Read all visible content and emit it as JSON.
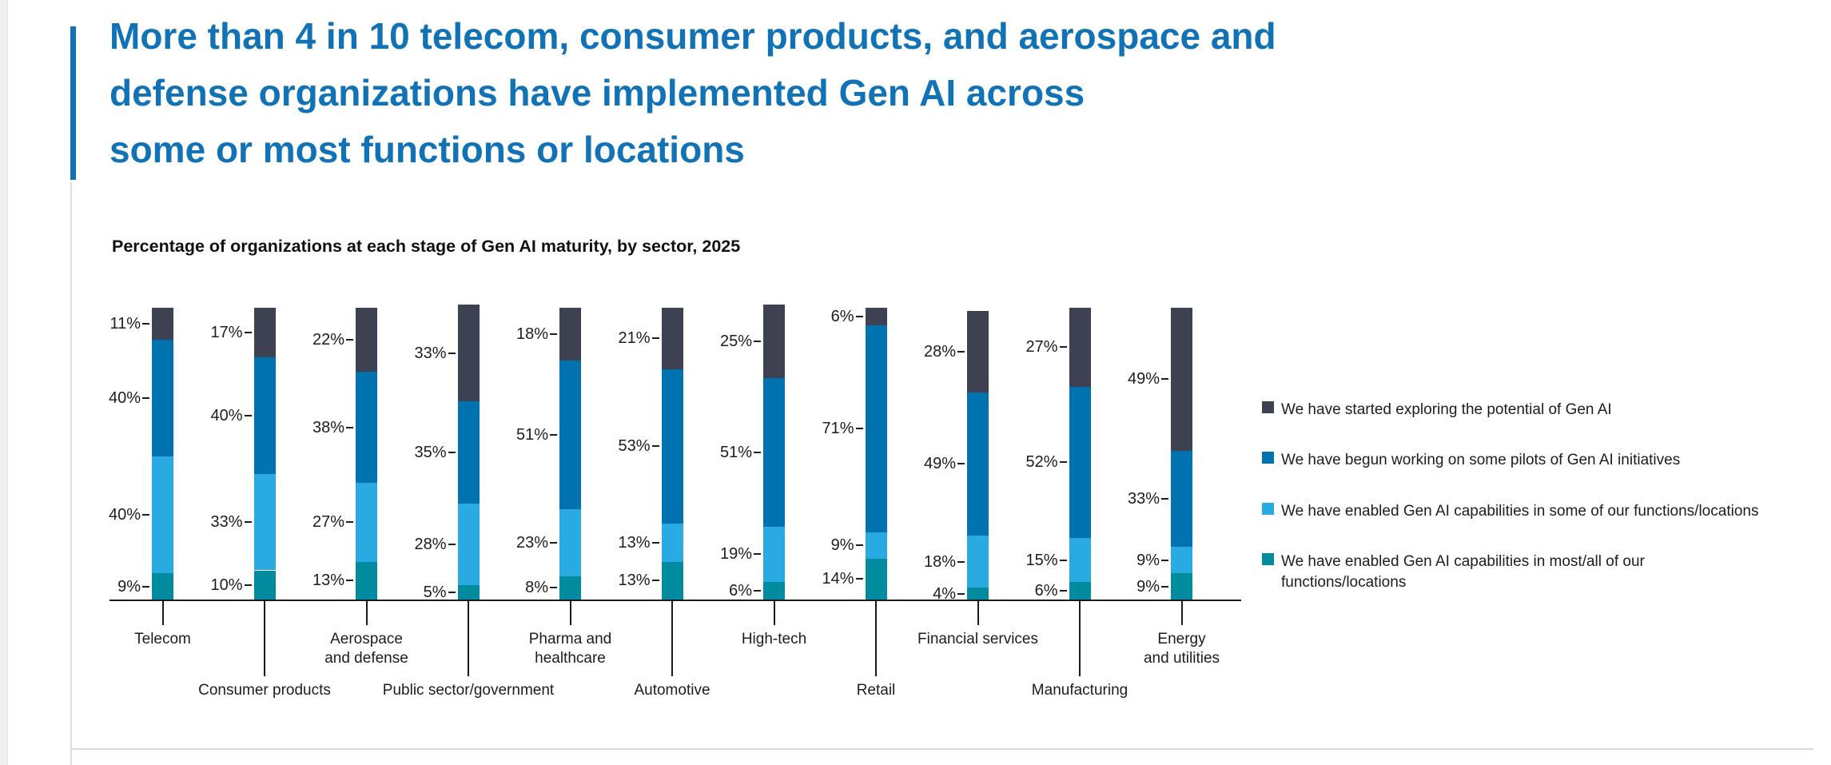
{
  "page": {
    "title_lines": [
      "More than 4 in 10 telecom, consumer products, and aerospace and",
      "defense organizations have implemented Gen AI across",
      "some or most functions or locations"
    ],
    "title_color": "#1173b5",
    "accent_color": "#1173b5"
  },
  "chart_data": {
    "type": "bar",
    "variant": "stacked-100-vertical",
    "title": "Percentage of organizations at each stage of Gen AI maturity, by sector, 2025",
    "value_suffix": "%",
    "legend_position": "right",
    "grid": false,
    "categories": [
      "Telecom",
      "Consumer products",
      "Aerospace and defense",
      "Public sector/government",
      "Pharma and healthcare",
      "Automotive",
      "High-tech",
      "Retail",
      "Financial services",
      "Manufacturing",
      "Energy and utilities"
    ],
    "category_label_lines": [
      [
        "Telecom"
      ],
      [
        "Consumer products"
      ],
      [
        "Aerospace",
        "and defense"
      ],
      [
        "Public sector/government"
      ],
      [
        "Pharma and",
        "healthcare"
      ],
      [
        "Automotive"
      ],
      [
        "High-tech"
      ],
      [
        "Retail"
      ],
      [
        "Financial services"
      ],
      [
        "Manufacturing"
      ],
      [
        "Energy",
        "and utilities"
      ]
    ],
    "category_label_row": [
      1,
      2,
      1,
      2,
      1,
      2,
      1,
      2,
      1,
      2,
      1
    ],
    "stack_order_note": "first series is the top segment of each bar",
    "series": [
      {
        "name": "We have started exploring the potential of Gen AI",
        "color": "#3e4152",
        "values": [
          11,
          17,
          22,
          33,
          18,
          21,
          25,
          6,
          28,
          27,
          49
        ]
      },
      {
        "name": "We have begun working on some pilots of Gen AI initiatives",
        "color": "#0072b0",
        "values": [
          40,
          40,
          38,
          35,
          51,
          53,
          51,
          71,
          49,
          52,
          33
        ]
      },
      {
        "name": "We have enabled Gen AI capabilities in some of our functions/locations",
        "color": "#29abe2",
        "values": [
          40,
          33,
          27,
          28,
          23,
          13,
          19,
          9,
          18,
          15,
          9
        ]
      },
      {
        "name": "We have enabled Gen AI capabilities in most/all of our functions/locations",
        "color": "#008c9e",
        "values": [
          9,
          10,
          13,
          5,
          8,
          13,
          6,
          14,
          4,
          6,
          9
        ]
      }
    ]
  }
}
